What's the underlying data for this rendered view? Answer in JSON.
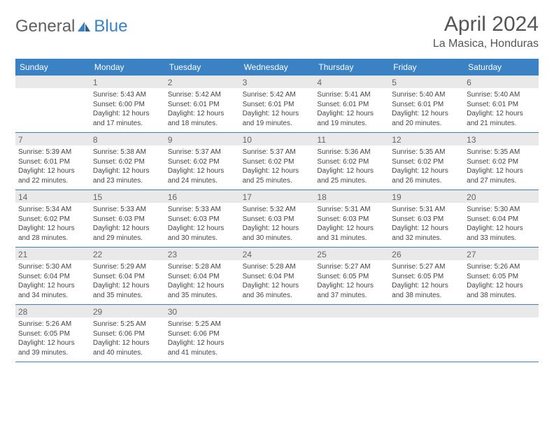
{
  "brand": {
    "part1": "General",
    "part2": "Blue",
    "accent_color": "#3a82c4",
    "text_color": "#606060"
  },
  "title": "April 2024",
  "location": "La Masica, Honduras",
  "day_names": [
    "Sunday",
    "Monday",
    "Tuesday",
    "Wednesday",
    "Thursday",
    "Friday",
    "Saturday"
  ],
  "colors": {
    "header_bg": "#3a82c4",
    "header_text": "#ffffff",
    "daynum_bg": "#e9e9e9",
    "daynum_text": "#666666",
    "cell_text": "#444444",
    "week_border": "#3a82c4",
    "title_color": "#555555"
  },
  "layout": {
    "columns": 7,
    "day_header_fontsize": 12,
    "cell_fontsize": 10,
    "title_fontsize": 30,
    "location_fontsize": 16
  },
  "weeks": [
    [
      {
        "day": "",
        "sunrise": "",
        "sunset": "",
        "daylight": ""
      },
      {
        "day": "1",
        "sunrise": "Sunrise: 5:43 AM",
        "sunset": "Sunset: 6:00 PM",
        "daylight": "Daylight: 12 hours and 17 minutes."
      },
      {
        "day": "2",
        "sunrise": "Sunrise: 5:42 AM",
        "sunset": "Sunset: 6:01 PM",
        "daylight": "Daylight: 12 hours and 18 minutes."
      },
      {
        "day": "3",
        "sunrise": "Sunrise: 5:42 AM",
        "sunset": "Sunset: 6:01 PM",
        "daylight": "Daylight: 12 hours and 19 minutes."
      },
      {
        "day": "4",
        "sunrise": "Sunrise: 5:41 AM",
        "sunset": "Sunset: 6:01 PM",
        "daylight": "Daylight: 12 hours and 19 minutes."
      },
      {
        "day": "5",
        "sunrise": "Sunrise: 5:40 AM",
        "sunset": "Sunset: 6:01 PM",
        "daylight": "Daylight: 12 hours and 20 minutes."
      },
      {
        "day": "6",
        "sunrise": "Sunrise: 5:40 AM",
        "sunset": "Sunset: 6:01 PM",
        "daylight": "Daylight: 12 hours and 21 minutes."
      }
    ],
    [
      {
        "day": "7",
        "sunrise": "Sunrise: 5:39 AM",
        "sunset": "Sunset: 6:01 PM",
        "daylight": "Daylight: 12 hours and 22 minutes."
      },
      {
        "day": "8",
        "sunrise": "Sunrise: 5:38 AM",
        "sunset": "Sunset: 6:02 PM",
        "daylight": "Daylight: 12 hours and 23 minutes."
      },
      {
        "day": "9",
        "sunrise": "Sunrise: 5:37 AM",
        "sunset": "Sunset: 6:02 PM",
        "daylight": "Daylight: 12 hours and 24 minutes."
      },
      {
        "day": "10",
        "sunrise": "Sunrise: 5:37 AM",
        "sunset": "Sunset: 6:02 PM",
        "daylight": "Daylight: 12 hours and 25 minutes."
      },
      {
        "day": "11",
        "sunrise": "Sunrise: 5:36 AM",
        "sunset": "Sunset: 6:02 PM",
        "daylight": "Daylight: 12 hours and 25 minutes."
      },
      {
        "day": "12",
        "sunrise": "Sunrise: 5:35 AM",
        "sunset": "Sunset: 6:02 PM",
        "daylight": "Daylight: 12 hours and 26 minutes."
      },
      {
        "day": "13",
        "sunrise": "Sunrise: 5:35 AM",
        "sunset": "Sunset: 6:02 PM",
        "daylight": "Daylight: 12 hours and 27 minutes."
      }
    ],
    [
      {
        "day": "14",
        "sunrise": "Sunrise: 5:34 AM",
        "sunset": "Sunset: 6:02 PM",
        "daylight": "Daylight: 12 hours and 28 minutes."
      },
      {
        "day": "15",
        "sunrise": "Sunrise: 5:33 AM",
        "sunset": "Sunset: 6:03 PM",
        "daylight": "Daylight: 12 hours and 29 minutes."
      },
      {
        "day": "16",
        "sunrise": "Sunrise: 5:33 AM",
        "sunset": "Sunset: 6:03 PM",
        "daylight": "Daylight: 12 hours and 30 minutes."
      },
      {
        "day": "17",
        "sunrise": "Sunrise: 5:32 AM",
        "sunset": "Sunset: 6:03 PM",
        "daylight": "Daylight: 12 hours and 30 minutes."
      },
      {
        "day": "18",
        "sunrise": "Sunrise: 5:31 AM",
        "sunset": "Sunset: 6:03 PM",
        "daylight": "Daylight: 12 hours and 31 minutes."
      },
      {
        "day": "19",
        "sunrise": "Sunrise: 5:31 AM",
        "sunset": "Sunset: 6:03 PM",
        "daylight": "Daylight: 12 hours and 32 minutes."
      },
      {
        "day": "20",
        "sunrise": "Sunrise: 5:30 AM",
        "sunset": "Sunset: 6:04 PM",
        "daylight": "Daylight: 12 hours and 33 minutes."
      }
    ],
    [
      {
        "day": "21",
        "sunrise": "Sunrise: 5:30 AM",
        "sunset": "Sunset: 6:04 PM",
        "daylight": "Daylight: 12 hours and 34 minutes."
      },
      {
        "day": "22",
        "sunrise": "Sunrise: 5:29 AM",
        "sunset": "Sunset: 6:04 PM",
        "daylight": "Daylight: 12 hours and 35 minutes."
      },
      {
        "day": "23",
        "sunrise": "Sunrise: 5:28 AM",
        "sunset": "Sunset: 6:04 PM",
        "daylight": "Daylight: 12 hours and 35 minutes."
      },
      {
        "day": "24",
        "sunrise": "Sunrise: 5:28 AM",
        "sunset": "Sunset: 6:04 PM",
        "daylight": "Daylight: 12 hours and 36 minutes."
      },
      {
        "day": "25",
        "sunrise": "Sunrise: 5:27 AM",
        "sunset": "Sunset: 6:05 PM",
        "daylight": "Daylight: 12 hours and 37 minutes."
      },
      {
        "day": "26",
        "sunrise": "Sunrise: 5:27 AM",
        "sunset": "Sunset: 6:05 PM",
        "daylight": "Daylight: 12 hours and 38 minutes."
      },
      {
        "day": "27",
        "sunrise": "Sunrise: 5:26 AM",
        "sunset": "Sunset: 6:05 PM",
        "daylight": "Daylight: 12 hours and 38 minutes."
      }
    ],
    [
      {
        "day": "28",
        "sunrise": "Sunrise: 5:26 AM",
        "sunset": "Sunset: 6:05 PM",
        "daylight": "Daylight: 12 hours and 39 minutes."
      },
      {
        "day": "29",
        "sunrise": "Sunrise: 5:25 AM",
        "sunset": "Sunset: 6:06 PM",
        "daylight": "Daylight: 12 hours and 40 minutes."
      },
      {
        "day": "30",
        "sunrise": "Sunrise: 5:25 AM",
        "sunset": "Sunset: 6:06 PM",
        "daylight": "Daylight: 12 hours and 41 minutes."
      },
      {
        "day": "",
        "sunrise": "",
        "sunset": "",
        "daylight": ""
      },
      {
        "day": "",
        "sunrise": "",
        "sunset": "",
        "daylight": ""
      },
      {
        "day": "",
        "sunrise": "",
        "sunset": "",
        "daylight": ""
      },
      {
        "day": "",
        "sunrise": "",
        "sunset": "",
        "daylight": ""
      }
    ]
  ]
}
